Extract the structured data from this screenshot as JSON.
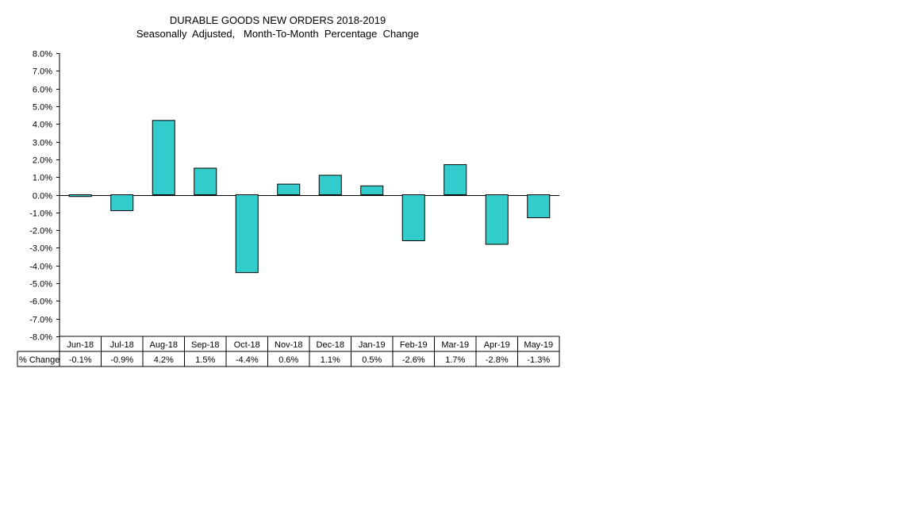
{
  "chart_data": {
    "type": "bar",
    "title": "DURABLE GOODS NEW ORDERS 2018-2019",
    "subtitle": "Seasonally  Adjusted,   Month-To-Month  Percentage  Change",
    "categories": [
      "Jun-18",
      "Jul-18",
      "Aug-18",
      "Sep-18",
      "Oct-18",
      "Nov-18",
      "Dec-18",
      "Jan-19",
      "Feb-19",
      "Mar-19",
      "Apr-19",
      "May-19"
    ],
    "series": [
      {
        "name": "% Change",
        "values": [
          -0.1,
          -0.9,
          4.2,
          1.5,
          -4.4,
          0.6,
          1.1,
          0.5,
          -2.6,
          1.7,
          -2.8,
          -1.3
        ],
        "labels": [
          "-0.1%",
          "-0.9%",
          "4.2%",
          "1.5%",
          "-4.4%",
          "0.6%",
          "1.1%",
          "0.5%",
          "-2.6%",
          "1.7%",
          "-2.8%",
          "-1.3%"
        ]
      }
    ],
    "ylim": [
      -8,
      8
    ],
    "ytick_step": 1,
    "ytick_labels": [
      "8.0%",
      "7.0%",
      "6.0%",
      "5.0%",
      "4.0%",
      "3.0%",
      "2.0%",
      "1.0%",
      "0.0%",
      "-1.0%",
      "-2.0%",
      "-3.0%",
      "-4.0%",
      "-5.0%",
      "-6.0%",
      "-7.0%",
      "-8.0%"
    ],
    "data_table": true,
    "grid": false,
    "bar_color": "#33CCCC",
    "bar_outline": "#000000"
  }
}
